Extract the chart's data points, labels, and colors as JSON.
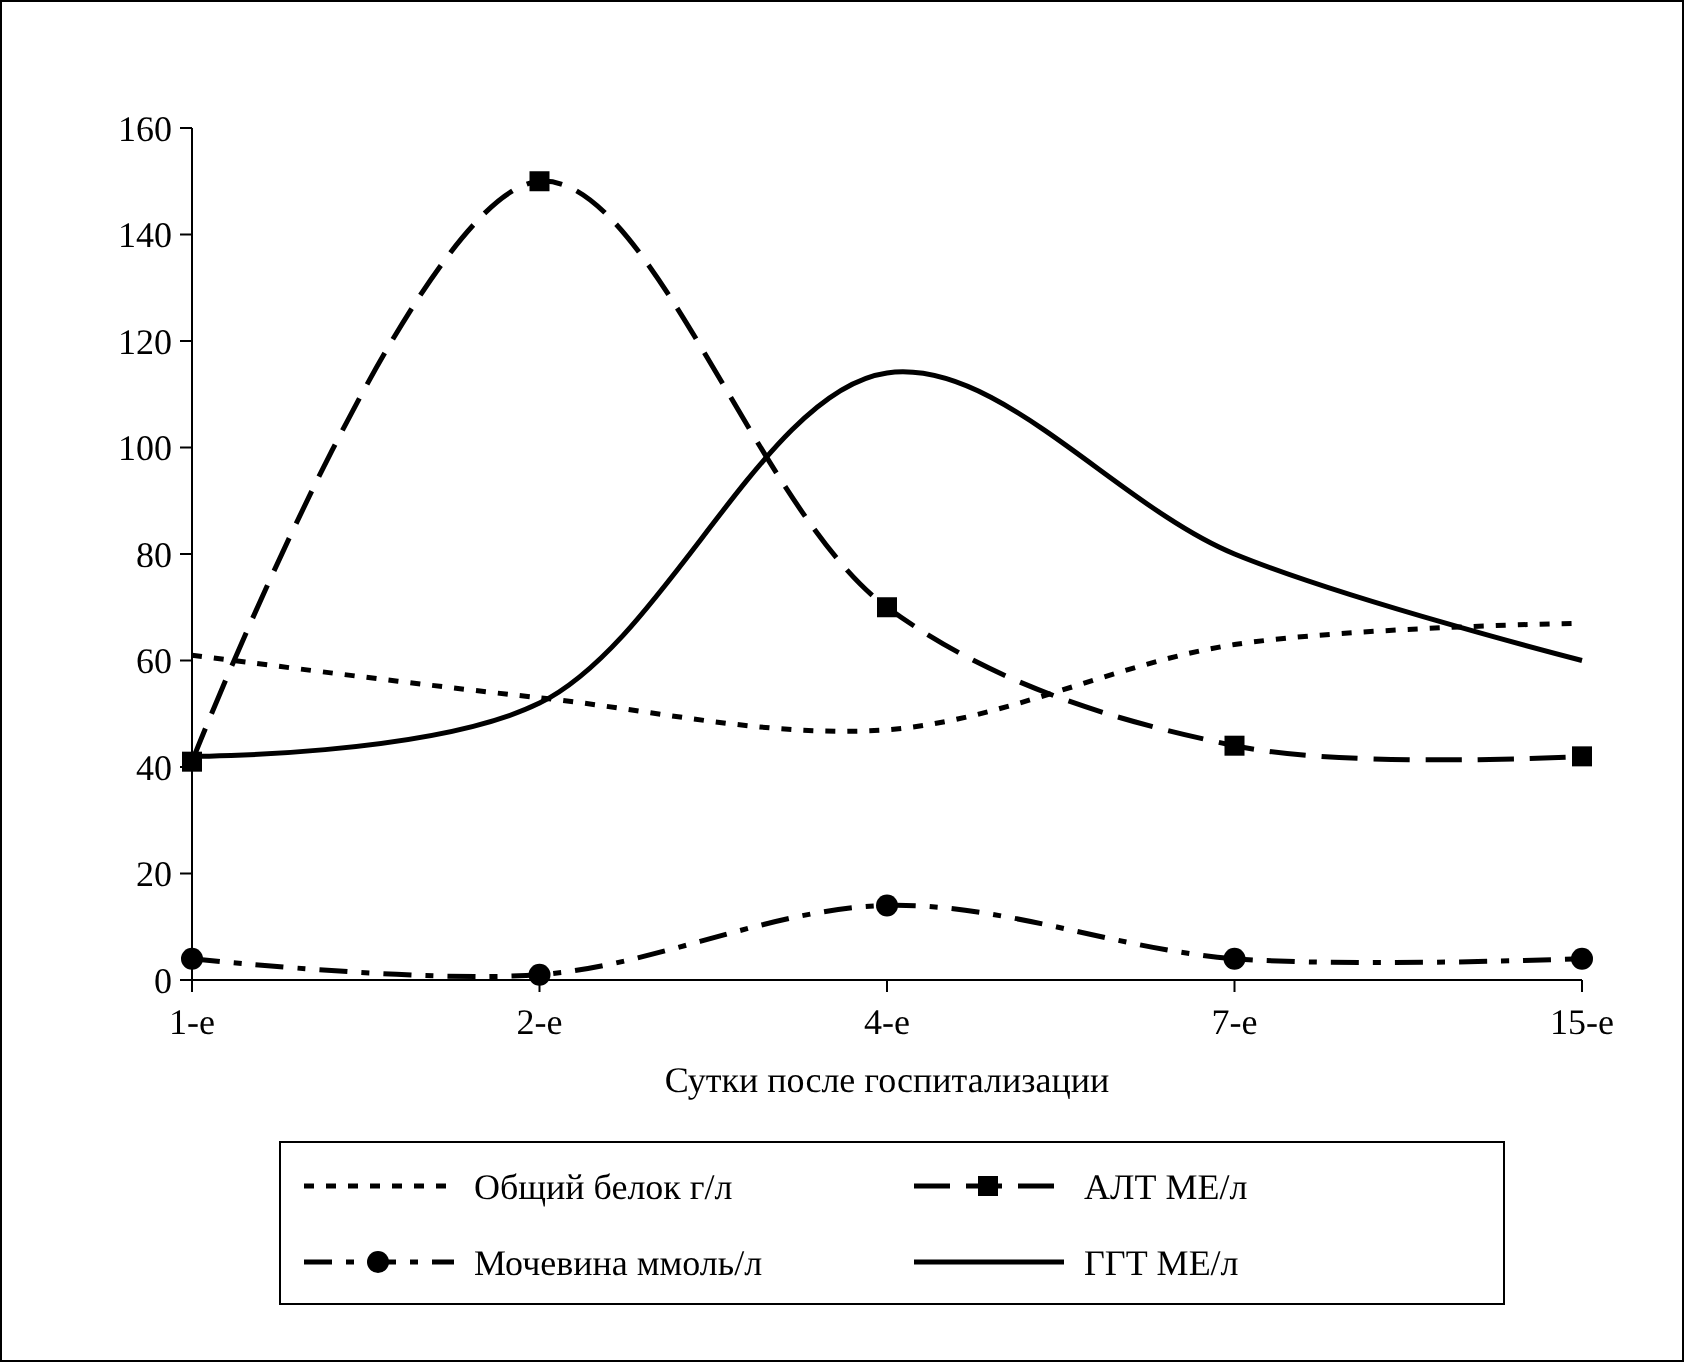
{
  "chart_data": {
    "type": "line",
    "xlabel": "Сутки после госпитализации",
    "categories": [
      "1-е",
      "2-е",
      "4-е",
      "7-е",
      "15-е"
    ],
    "series": [
      {
        "name": "Общий белок г/л",
        "color": "#000000",
        "values": [
          61,
          53,
          47,
          63,
          67
        ],
        "line_style": "dotted",
        "marker": "none"
      },
      {
        "name": "АЛТ МЕ/л",
        "color": "#000000",
        "values": [
          41,
          150,
          70,
          44,
          42
        ],
        "line_style": "dashed",
        "marker": "square"
      },
      {
        "name": "Мочевина ммоль/л",
        "color": "#000000",
        "values": [
          4,
          1,
          14,
          4,
          4
        ],
        "line_style": "dashdot",
        "marker": "circle"
      },
      {
        "name": "ГГТ МЕ/л",
        "color": "#000000",
        "values": [
          42,
          52,
          114,
          80,
          60
        ],
        "line_style": "solid",
        "marker": "none"
      }
    ],
    "ylim": [
      0,
      160
    ],
    "yticks": [
      0,
      20,
      40,
      60,
      80,
      100,
      120,
      140,
      160
    ],
    "grid": false,
    "legend": "bottom"
  }
}
